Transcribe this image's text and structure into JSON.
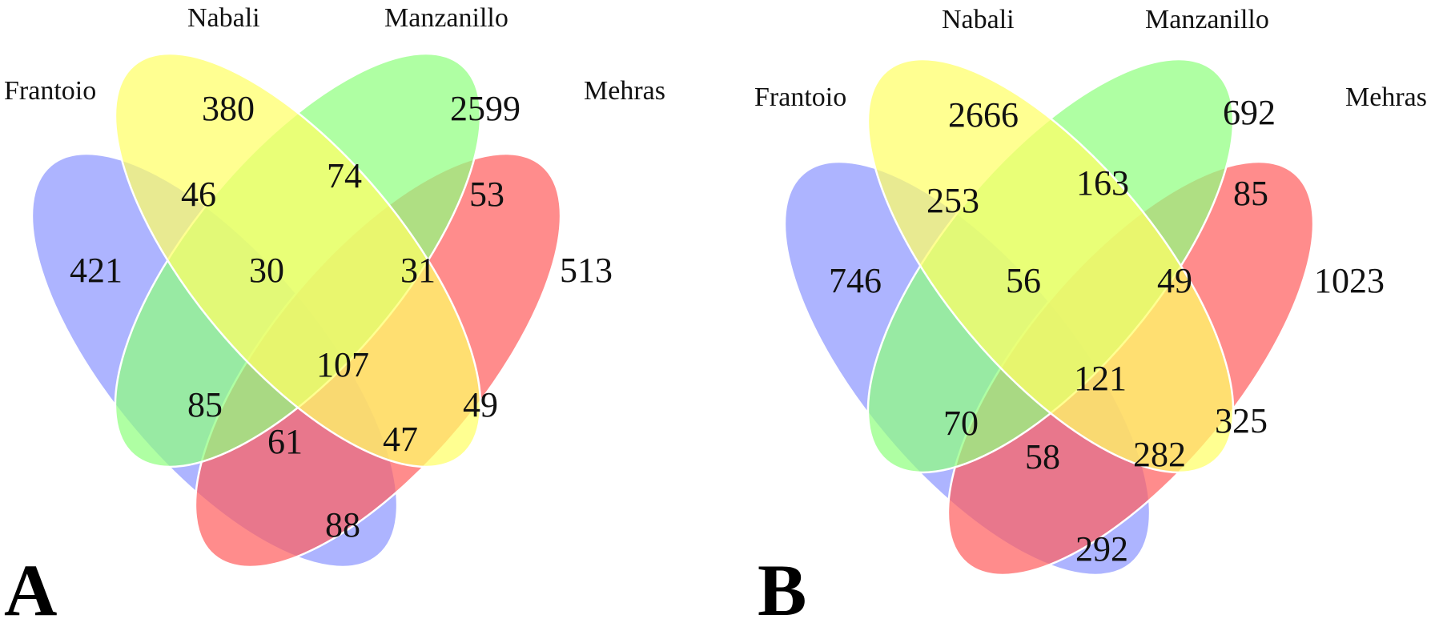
{
  "colors": {
    "Frantoio": "#8e97ff",
    "Nabali": "#ffff66",
    "Manzanillo": "#90ff80",
    "Mehras": "#ff5f5f"
  },
  "chart_data": [
    {
      "type": "venn",
      "panel_label": "A",
      "sets": [
        "Frantoio",
        "Nabali",
        "Manzanillo",
        "Mehras"
      ],
      "regions": [
        {
          "sets": [
            "Frantoio"
          ],
          "value": 421
        },
        {
          "sets": [
            "Nabali"
          ],
          "value": 380
        },
        {
          "sets": [
            "Manzanillo"
          ],
          "value": 2599
        },
        {
          "sets": [
            "Mehras"
          ],
          "value": 513
        },
        {
          "sets": [
            "Frantoio",
            "Nabali"
          ],
          "value": 46
        },
        {
          "sets": [
            "Nabali",
            "Manzanillo"
          ],
          "value": 74
        },
        {
          "sets": [
            "Manzanillo",
            "Mehras"
          ],
          "value": 53
        },
        {
          "sets": [
            "Frantoio",
            "Nabali",
            "Manzanillo"
          ],
          "value": 30
        },
        {
          "sets": [
            "Nabali",
            "Manzanillo",
            "Mehras"
          ],
          "value": 31
        },
        {
          "sets": [
            "Frantoio",
            "Manzanillo"
          ],
          "value": 85
        },
        {
          "sets": [
            "Nabali",
            "Mehras"
          ],
          "value": 49
        },
        {
          "sets": [
            "Frantoio",
            "Nabali",
            "Manzanillo",
            "Mehras"
          ],
          "value": 107
        },
        {
          "sets": [
            "Frantoio",
            "Manzanillo",
            "Mehras"
          ],
          "value": 61
        },
        {
          "sets": [
            "Frantoio",
            "Nabali",
            "Mehras"
          ],
          "value": 47
        },
        {
          "sets": [
            "Frantoio",
            "Mehras"
          ],
          "value": 88
        }
      ]
    },
    {
      "type": "venn",
      "panel_label": "B",
      "sets": [
        "Frantoio",
        "Nabali",
        "Manzanillo",
        "Mehras"
      ],
      "regions": [
        {
          "sets": [
            "Frantoio"
          ],
          "value": 746
        },
        {
          "sets": [
            "Nabali"
          ],
          "value": 2666
        },
        {
          "sets": [
            "Manzanillo"
          ],
          "value": 692
        },
        {
          "sets": [
            "Mehras"
          ],
          "value": 1023
        },
        {
          "sets": [
            "Frantoio",
            "Nabali"
          ],
          "value": 253
        },
        {
          "sets": [
            "Nabali",
            "Manzanillo"
          ],
          "value": 163
        },
        {
          "sets": [
            "Manzanillo",
            "Mehras"
          ],
          "value": 85
        },
        {
          "sets": [
            "Frantoio",
            "Nabali",
            "Manzanillo"
          ],
          "value": 56
        },
        {
          "sets": [
            "Nabali",
            "Manzanillo",
            "Mehras"
          ],
          "value": 49
        },
        {
          "sets": [
            "Frantoio",
            "Manzanillo"
          ],
          "value": 70
        },
        {
          "sets": [
            "Nabali",
            "Mehras"
          ],
          "value": 325
        },
        {
          "sets": [
            "Frantoio",
            "Nabali",
            "Manzanillo",
            "Mehras"
          ],
          "value": 121
        },
        {
          "sets": [
            "Frantoio",
            "Manzanillo",
            "Mehras"
          ],
          "value": 58
        },
        {
          "sets": [
            "Frantoio",
            "Nabali",
            "Mehras"
          ],
          "value": 282
        },
        {
          "sets": [
            "Frantoio",
            "Mehras"
          ],
          "value": 292
        }
      ]
    }
  ]
}
